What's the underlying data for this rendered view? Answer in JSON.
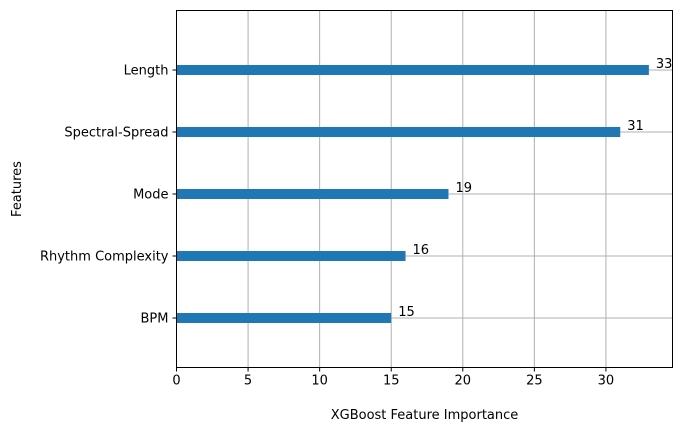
{
  "chart_data": {
    "type": "bar",
    "orientation": "horizontal",
    "title": "",
    "xlabel": "XGBoost Feature Importance",
    "ylabel": "Features",
    "categories": [
      "BPM",
      "Rhythm Complexity",
      "Mode",
      "Spectral-Spread",
      "Length"
    ],
    "values": [
      15,
      16,
      19,
      31,
      33
    ],
    "data_labels": [
      "15",
      "16",
      "19",
      "31",
      "33"
    ],
    "x_ticks": [
      0,
      5,
      10,
      15,
      20,
      25,
      30
    ],
    "xlim": [
      0,
      34.65
    ],
    "grid": true,
    "bar_color": "#1f77b4",
    "grid_color": "#b0b0b0"
  }
}
